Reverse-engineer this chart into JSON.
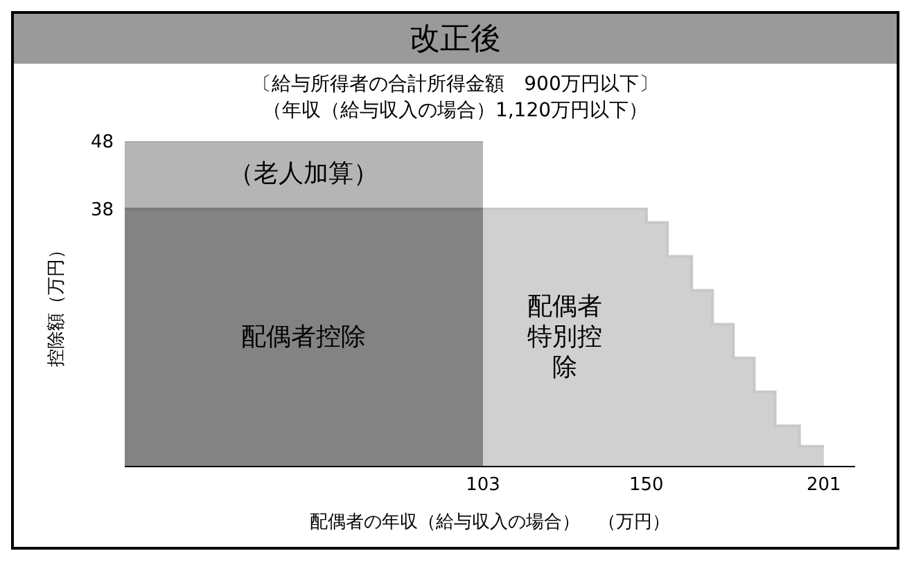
{
  "chart_data": {
    "type": "area",
    "title": "改正後",
    "subtitle": "〔給与所得者の合計所得金額　900万円以下〕",
    "annotations": [
      "（年収（給与収入の場合）1,120万円以下）"
    ],
    "xlabel": "配偶者の年収（給与収入の場合）　（万円）",
    "ylabel": "控除額（万円）",
    "series": [
      {
        "name": "（老人加算）",
        "color": "#a8a8a8",
        "x": [
          0,
          103
        ],
        "values": [
          48,
          48
        ]
      },
      {
        "name": "配偶者控除",
        "color": "#7a7a7a",
        "x": [
          0,
          103
        ],
        "values": [
          38,
          38
        ]
      },
      {
        "name": "配偶者特別控除",
        "color": "#c8c8c8",
        "x": [
          103,
          150,
          150,
          156,
          156,
          163,
          163,
          169,
          169,
          175,
          175,
          181,
          181,
          187,
          187,
          194,
          194,
          201
        ],
        "values": [
          38,
          38,
          36,
          36,
          31,
          31,
          26,
          26,
          21,
          21,
          16,
          16,
          11,
          11,
          6,
          6,
          3,
          3
        ]
      }
    ],
    "xlim": [
      0,
      210
    ],
    "xticks": [
      103,
      150,
      201
    ],
    "ylim": [
      0,
      48
    ],
    "yticks": [
      38,
      48
    ]
  }
}
